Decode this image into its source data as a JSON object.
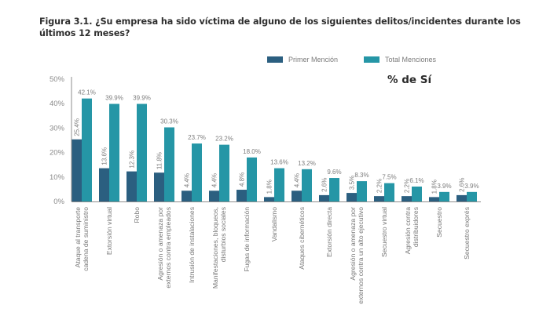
{
  "title": "Figura 3.1. ¿Su empresa ha sido víctima de alguno de los siguientes delitos/incidentes durante los últimos 12 meses?",
  "chart_data": {
    "type": "bar",
    "title": "Figura 3.1. ¿Su empresa ha sido víctima de alguno de los siguientes delitos/incidentes durante los últimos 12 meses?",
    "subtitle": "% de Sí",
    "xlabel": "",
    "ylabel": "",
    "ylim": [
      0,
      50
    ],
    "yticks": [
      0,
      10,
      20,
      30,
      40,
      50
    ],
    "ytick_labels": [
      "0%",
      "10%",
      "20%",
      "30%",
      "40%",
      "50%"
    ],
    "grid": false,
    "legend_position": "top",
    "categories": [
      [
        "Ataque al transporte",
        "cadena de suministro"
      ],
      [
        "Extorsión virtual"
      ],
      [
        "Robo"
      ],
      [
        "Agresión o amenaza por",
        "externos contra empleados"
      ],
      [
        "Intrusión de instalaciones"
      ],
      [
        "Manifestaciones, bloqueos,",
        "disturbios sociales"
      ],
      [
        "Fugas de información"
      ],
      [
        "Vandalismo"
      ],
      [
        "Ataques cibernéticos"
      ],
      [
        "Extorsión directa"
      ],
      [
        "Agresión o amenaza por",
        "externos contra un alto ejecutivo"
      ],
      [
        "Secuestro virtual"
      ],
      [
        "Agresión contra",
        "distribuidores"
      ],
      [
        "Secuestro"
      ],
      [
        "Secuestro exprés"
      ]
    ],
    "series": [
      {
        "name": "Primer Mención",
        "color": "#2b5f80",
        "values": [
          25.4,
          13.6,
          12.3,
          11.8,
          4.4,
          4.4,
          4.8,
          1.8,
          4.4,
          2.6,
          3.5,
          2.2,
          2.2,
          1.8,
          2.6
        ],
        "labels": [
          "25.4%",
          "13.6%",
          "12.3%",
          "11.8%",
          "4.4%",
          "4.4%",
          "4.8%",
          "1.8%",
          "4.4%",
          "2.6%",
          "3.5%",
          "2.2%",
          "2.2%",
          "1.8%",
          "2.6%"
        ]
      },
      {
        "name": "Total Menciones",
        "color": "#2596a6",
        "values": [
          42.1,
          39.9,
          39.9,
          30.3,
          23.7,
          23.2,
          18.0,
          13.6,
          13.2,
          9.6,
          8.3,
          7.5,
          6.1,
          3.9,
          3.9
        ],
        "labels": [
          "42.1%",
          "39.9%",
          "39.9%",
          "30.3%",
          "23.7%",
          "23.2%",
          "18.0%",
          "13.6%",
          "13.2%",
          "9.6%",
          "8.3%",
          "7.5%",
          "6.1%",
          "3.9%",
          "3.9%"
        ]
      }
    ]
  }
}
